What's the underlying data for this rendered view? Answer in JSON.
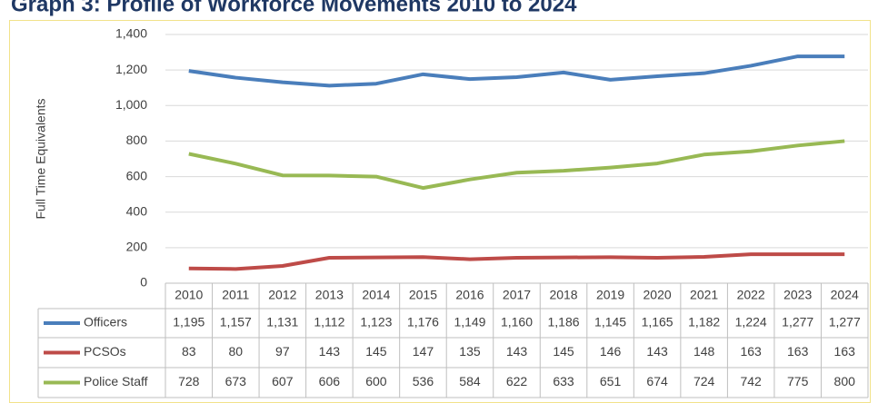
{
  "chart_data": {
    "type": "line",
    "title": "Graph 3: Profile of Workforce Movements 2010 to 2024",
    "y_label": "Full Time Equivalents",
    "categories": [
      "2010",
      "2011",
      "2012",
      "2013",
      "2014",
      "2015",
      "2016",
      "2017",
      "2018",
      "2019",
      "2020",
      "2021",
      "2022",
      "2023",
      "2024"
    ],
    "series": [
      {
        "name": "Officers",
        "color": "#4a7ebb",
        "values": [
          1195,
          1157,
          1131,
          1112,
          1123,
          1176,
          1149,
          1160,
          1186,
          1145,
          1165,
          1182,
          1224,
          1277,
          1277
        ],
        "value_labels": [
          "1,195",
          "1,157",
          "1,131",
          "1,112",
          "1,123",
          "1,176",
          "1,149",
          "1,160",
          "1,186",
          "1,145",
          "1,165",
          "1,182",
          "1,224",
          "1,277",
          "1,277"
        ]
      },
      {
        "name": "PCSOs",
        "color": "#be4b48",
        "values": [
          83,
          80,
          97,
          143,
          145,
          147,
          135,
          143,
          145,
          146,
          143,
          148,
          163,
          163,
          163
        ]
      },
      {
        "name": "Police Staff",
        "color": "#98b954",
        "values": [
          728,
          673,
          607,
          606,
          600,
          536,
          584,
          622,
          633,
          651,
          674,
          724,
          742,
          775,
          800
        ]
      }
    ],
    "ylim": [
      0,
      1400
    ],
    "yticks": [
      0,
      200,
      400,
      600,
      800,
      {
        "value": 1000,
        "label": "1,000"
      },
      {
        "value": 1200,
        "label": "1,200"
      },
      {
        "value": 1400,
        "label": "1,400"
      }
    ],
    "grid": true
  }
}
